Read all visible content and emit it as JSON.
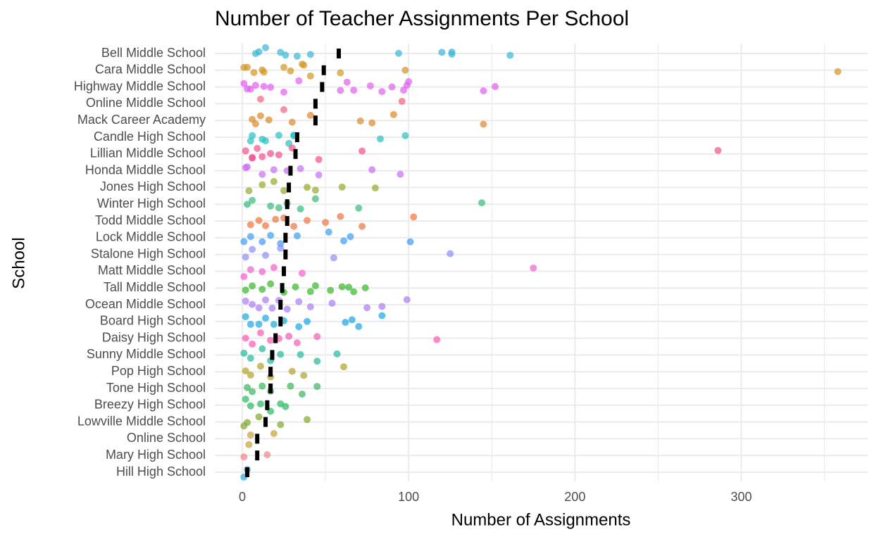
{
  "chart_data": {
    "type": "strip",
    "title": "Number of Teacher Assignments Per School",
    "xlabel": "Number of Assignments",
    "ylabel": "School",
    "categories": [
      "Bell Middle School",
      "Cara Middle School",
      "Highway Middle School",
      "Online Middle School",
      "Mack Career Academy",
      "Candle High School",
      "Lillian Middle School",
      "Honda Middle School",
      "Jones High School",
      "Winter High School",
      "Todd Middle School",
      "Lock Middle School",
      "Stalone High School",
      "Matt Middle School",
      "Tall Middle School",
      "Ocean Middle School",
      "Board High School",
      "Daisy High School",
      "Sunny Middle School",
      "Pop High School",
      "Tone High School",
      "Breezy High School",
      "Lowville Middle School",
      "Online School",
      "Mary High School",
      "Hill High School"
    ],
    "colors": [
      "#39b6d6",
      "#d4951f",
      "#e15ef0",
      "#f0677c",
      "#da8a2a",
      "#27c0c0",
      "#f4508e",
      "#c76df2",
      "#94aa2a",
      "#33bc7e",
      "#f0743e",
      "#3d9cf3",
      "#8c8ef5",
      "#f35ecf",
      "#39b629",
      "#a97cf4",
      "#1aa7df",
      "#f55bb5",
      "#24b89c",
      "#b1a22a",
      "#3bb55a",
      "#26ba63",
      "#80a82a",
      "#c8a038",
      "#f48484",
      "#2eb0e0"
    ],
    "points": [
      [
        10,
        14,
        33,
        23,
        41,
        120,
        126,
        94,
        161,
        126,
        8,
        26
      ],
      [
        1,
        7,
        13,
        25,
        29,
        36,
        41,
        37,
        59,
        98,
        358,
        3,
        12
      ],
      [
        1,
        5,
        13,
        17,
        25,
        34,
        59,
        63,
        67,
        77,
        84,
        90,
        97,
        99,
        100,
        145,
        152,
        3,
        8
      ],
      [
        11,
        25,
        96
      ],
      [
        6,
        8,
        16,
        30,
        41,
        71,
        78,
        91,
        145,
        11
      ],
      [
        6,
        14,
        22,
        28,
        31,
        83,
        98,
        5,
        12,
        31
      ],
      [
        2,
        6,
        9,
        12,
        17,
        22,
        30,
        46,
        72,
        286,
        6
      ],
      [
        2,
        12,
        19,
        27,
        35,
        46,
        78,
        95,
        3
      ],
      [
        4,
        12,
        19,
        25,
        39,
        44,
        60,
        80
      ],
      [
        3,
        6,
        17,
        22,
        27,
        35,
        44,
        70,
        144
      ],
      [
        5,
        10,
        14,
        20,
        25,
        31,
        39,
        50,
        59,
        72,
        103
      ],
      [
        1,
        5,
        12,
        17,
        23,
        33,
        52,
        61,
        65,
        101
      ],
      [
        2,
        6,
        14,
        23,
        55,
        125
      ],
      [
        1,
        5,
        12,
        19,
        36,
        175
      ],
      [
        2,
        6,
        12,
        17,
        25,
        32,
        41,
        44,
        53,
        60,
        64,
        67,
        74
      ],
      [
        2,
        6,
        10,
        14,
        18,
        22,
        27,
        34,
        41,
        54,
        75,
        84,
        99
      ],
      [
        2,
        5,
        10,
        14,
        19,
        25,
        34,
        39,
        62,
        66,
        70,
        84
      ],
      [
        2,
        6,
        11,
        17,
        22,
        28,
        33,
        45,
        117
      ],
      [
        1,
        5,
        12,
        17,
        23,
        35,
        45,
        57
      ],
      [
        2,
        5,
        11,
        17,
        30,
        37,
        61
      ],
      [
        3,
        6,
        12,
        17,
        29,
        36,
        45
      ],
      [
        2,
        5,
        11,
        17,
        23,
        26
      ],
      [
        1,
        3,
        10,
        23,
        39
      ],
      [
        4,
        5,
        19
      ],
      [
        1,
        15
      ],
      [
        1,
        3
      ]
    ],
    "means": [
      58,
      49,
      48,
      44,
      44,
      33,
      32,
      29,
      28,
      27,
      27,
      26,
      26,
      25,
      24,
      23,
      23,
      20,
      18,
      17,
      17,
      15,
      14,
      9,
      9,
      3
    ],
    "xlim": [
      -16.5,
      376
    ],
    "xticks": [
      0,
      100,
      200,
      300
    ],
    "xminor": [
      50,
      150,
      250,
      350
    ],
    "grid": true
  }
}
